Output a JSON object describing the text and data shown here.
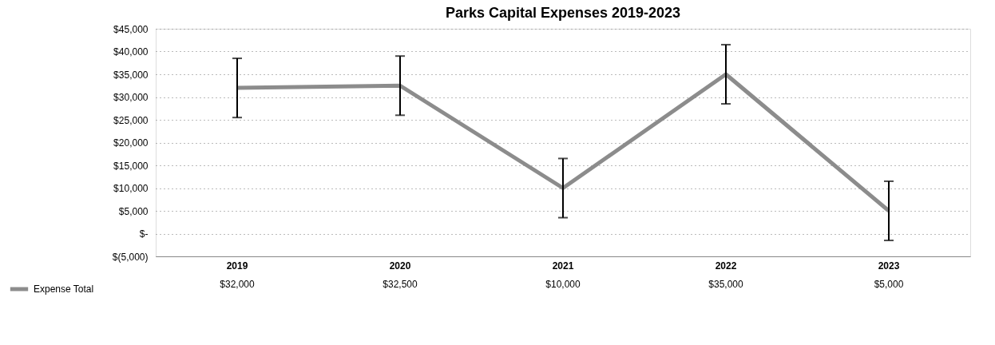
{
  "chart_data": {
    "type": "line",
    "title": "Parks Capital Expenses 2019-2023",
    "categories": [
      "2019",
      "2020",
      "2021",
      "2022",
      "2023"
    ],
    "series": [
      {
        "name": "Expense Total",
        "color": "#8c8c8c",
        "values": [
          32000,
          32500,
          10000,
          35000,
          5000
        ],
        "errors": [
          6500,
          6500,
          6500,
          6500,
          6500
        ],
        "value_labels": [
          "$32,000",
          "$32,500",
          "$10,000",
          "$35,000",
          "$5,000"
        ]
      }
    ],
    "ylim": [
      -5000,
      45000
    ],
    "yticks": [
      {
        "value": -5000,
        "label": "$(5,000)"
      },
      {
        "value": 0,
        "label": "$-"
      },
      {
        "value": 5000,
        "label": "$5,000"
      },
      {
        "value": 10000,
        "label": "$10,000"
      },
      {
        "value": 15000,
        "label": "$15,000"
      },
      {
        "value": 20000,
        "label": "$20,000"
      },
      {
        "value": 25000,
        "label": "$25,000"
      },
      {
        "value": 30000,
        "label": "$30,000"
      },
      {
        "value": 35000,
        "label": "$35,000"
      },
      {
        "value": 40000,
        "label": "$40,000"
      },
      {
        "value": 45000,
        "label": "$45,000"
      }
    ],
    "grid": "y",
    "legend": "bottom left",
    "marker": "none",
    "line_style": "solid"
  }
}
